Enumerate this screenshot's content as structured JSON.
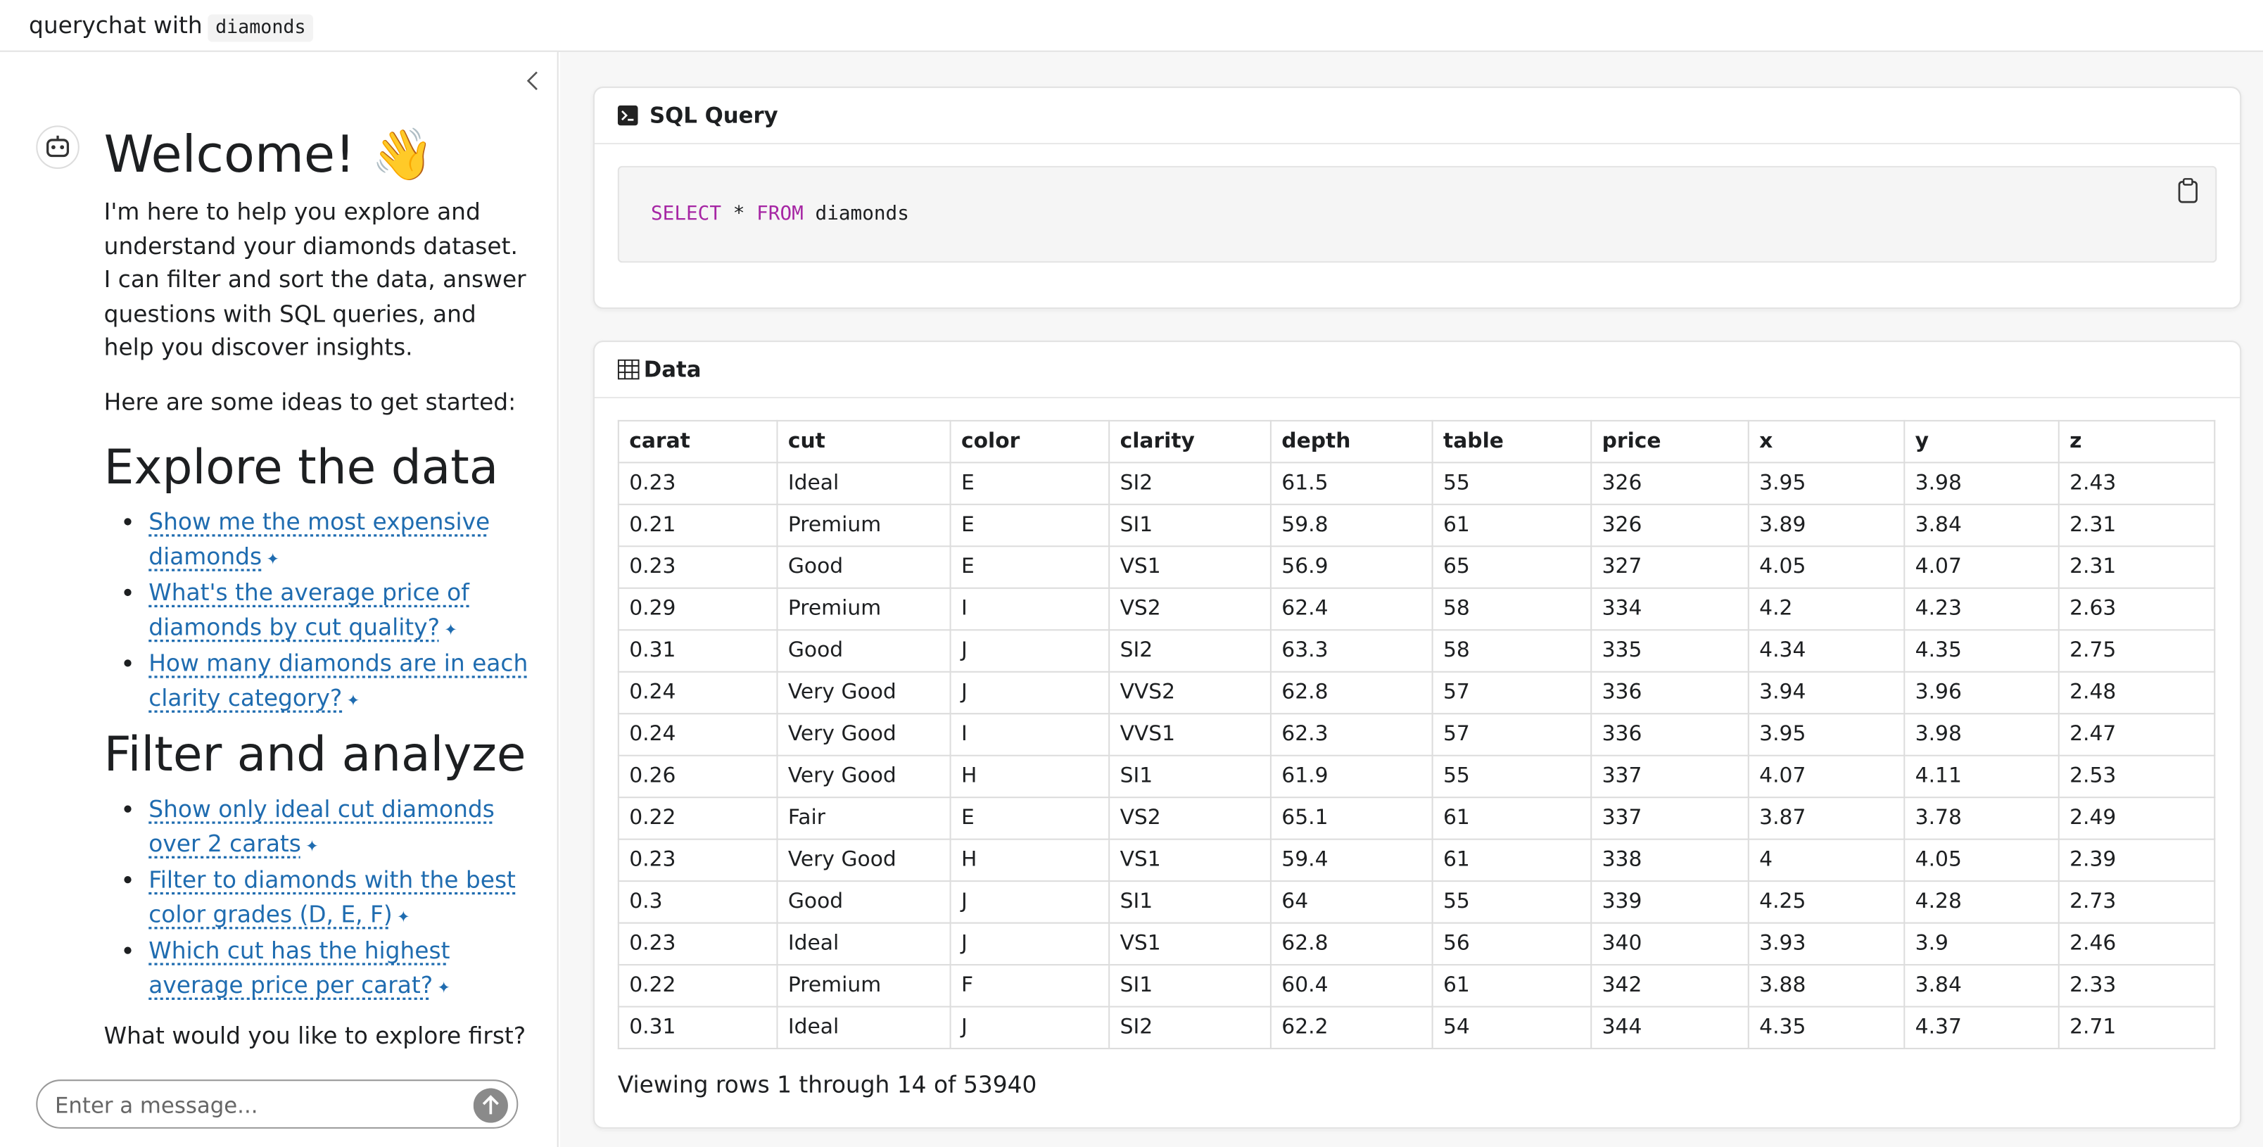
{
  "header": {
    "title": "querychat with",
    "code": "diamonds"
  },
  "chat": {
    "welcome": "Welcome! 👋",
    "intro": "I'm here to help you explore and understand your diamonds dataset. I can filter and sort the data, answer questions with SQL queries, and help you discover insights.",
    "ideas_intro": "Here are some ideas to get started:",
    "sections": [
      {
        "heading": "Explore the data",
        "items": [
          "Show me the most expensive diamonds",
          "What's the average price of diamonds by cut quality?",
          "How many diamonds are in each clarity category?"
        ]
      },
      {
        "heading": "Filter and analyze",
        "items": [
          "Show only ideal cut diamonds over 2 carats",
          "Filter to diamonds with the best color grades (D, E, F)",
          "Which cut has the highest average price per carat?"
        ]
      }
    ],
    "closing": "What would you like to explore first?",
    "input_placeholder": "Enter a message..."
  },
  "sql": {
    "title": "SQL Query",
    "query": [
      "SELECT",
      "*",
      "FROM",
      "diamonds"
    ]
  },
  "data": {
    "title": "Data",
    "columns": [
      "carat",
      "cut",
      "color",
      "clarity",
      "depth",
      "table",
      "price",
      "x",
      "y",
      "z"
    ],
    "rows": [
      [
        0.23,
        "Ideal",
        "E",
        "SI2",
        61.5,
        55,
        326,
        3.95,
        3.98,
        2.43
      ],
      [
        0.21,
        "Premium",
        "E",
        "SI1",
        59.8,
        61,
        326,
        3.89,
        3.84,
        2.31
      ],
      [
        0.23,
        "Good",
        "E",
        "VS1",
        56.9,
        65,
        327,
        4.05,
        4.07,
        2.31
      ],
      [
        0.29,
        "Premium",
        "I",
        "VS2",
        62.4,
        58,
        334,
        4.2,
        4.23,
        2.63
      ],
      [
        0.31,
        "Good",
        "J",
        "SI2",
        63.3,
        58,
        335,
        4.34,
        4.35,
        2.75
      ],
      [
        0.24,
        "Very Good",
        "J",
        "VVS2",
        62.8,
        57,
        336,
        3.94,
        3.96,
        2.48
      ],
      [
        0.24,
        "Very Good",
        "I",
        "VVS1",
        62.3,
        57,
        336,
        3.95,
        3.98,
        2.47
      ],
      [
        0.26,
        "Very Good",
        "H",
        "SI1",
        61.9,
        55,
        337,
        4.07,
        4.11,
        2.53
      ],
      [
        0.22,
        "Fair",
        "E",
        "VS2",
        65.1,
        61,
        337,
        3.87,
        3.78,
        2.49
      ],
      [
        0.23,
        "Very Good",
        "H",
        "VS1",
        59.4,
        61,
        338,
        4,
        4.05,
        2.39
      ],
      [
        0.3,
        "Good",
        "J",
        "SI1",
        64,
        55,
        339,
        4.25,
        4.28,
        2.73
      ],
      [
        0.23,
        "Ideal",
        "J",
        "VS1",
        62.8,
        56,
        340,
        3.93,
        3.9,
        2.46
      ],
      [
        0.22,
        "Premium",
        "F",
        "SI1",
        60.4,
        61,
        342,
        3.88,
        3.84,
        2.33
      ],
      [
        0.31,
        "Ideal",
        "J",
        "SI2",
        62.2,
        54,
        344,
        4.35,
        4.37,
        2.71
      ]
    ],
    "footer": "Viewing rows 1 through 14 of 53940"
  }
}
